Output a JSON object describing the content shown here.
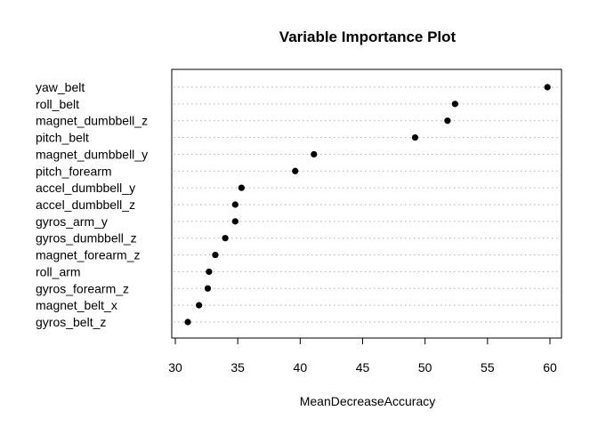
{
  "chart_data": {
    "type": "scatter",
    "title": "Variable Importance Plot",
    "xlabel": "MeanDecreaseAccuracy",
    "ylabel": "",
    "xlim": [
      30,
      60
    ],
    "xticks": [
      "30",
      "35",
      "40",
      "45",
      "50",
      "55",
      "60"
    ],
    "grid": "dotted horizontal lines per variable",
    "variables": [
      "yaw_belt",
      "roll_belt",
      "magnet_dumbbell_z",
      "pitch_belt",
      "magnet_dumbbell_y",
      "pitch_forearm",
      "accel_dumbbell_y",
      "accel_dumbbell_z",
      "gyros_arm_y",
      "gyros_dumbbell_z",
      "magnet_forearm_z",
      "roll_arm",
      "gyros_forearm_z",
      "magnet_belt_x",
      "gyros_belt_z"
    ],
    "values": [
      59.8,
      52.4,
      51.8,
      49.2,
      41.1,
      39.6,
      35.3,
      34.8,
      34.8,
      34.0,
      33.2,
      32.7,
      32.6,
      31.9,
      31.0
    ]
  }
}
